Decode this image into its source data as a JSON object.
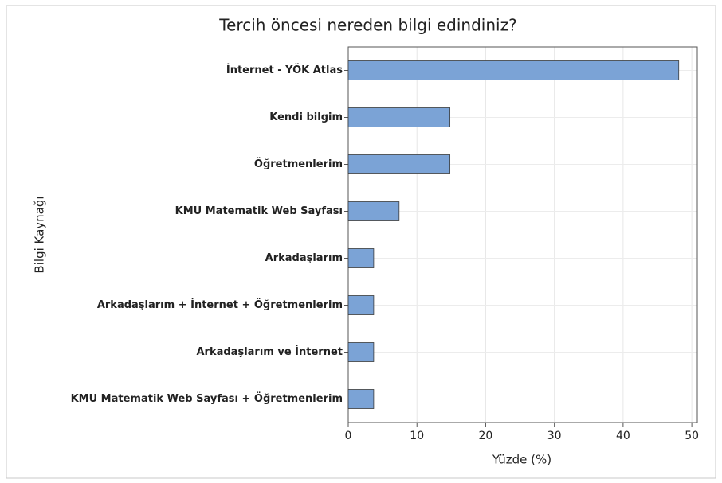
{
  "chart_data": {
    "type": "bar",
    "orientation": "horizontal",
    "title": "Tercih öncesi nereden bilgi edindiniz?",
    "xlabel": "Yüzde (%)",
    "ylabel": "Bilgi Kaynağı",
    "categories": [
      "İnternet - YÖK Atlas",
      "Kendi bilgim",
      "Öğretmenlerim",
      "KMU Matematik Web Sayfası",
      "Arkadaşlarım",
      "Arkadaşlarım + İnternet + Öğretmenlerim",
      "Arkadaşlarım ve İnternet",
      "KMU Matematik Web Sayfası + Öğretmenlerim"
    ],
    "values": [
      48.1,
      14.8,
      14.8,
      7.4,
      3.7,
      3.7,
      3.7,
      3.7
    ],
    "color": "#7ba3d6",
    "xlim": [
      0,
      50.8
    ],
    "xticks": [
      0,
      10,
      20,
      30,
      40,
      50
    ],
    "grid": true
  }
}
